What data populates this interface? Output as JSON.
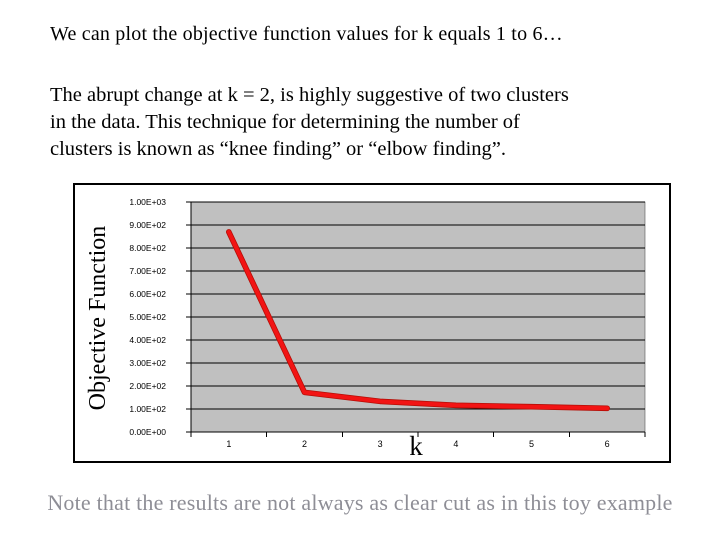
{
  "slide": {
    "title": "We can plot the objective function values for k equals 1 to 6…",
    "body_lines": [
      "The abrupt change at k = 2, is highly suggestive of two clusters",
      "in the data. This technique for determining the number of",
      "clusters is known as “knee finding” or “elbow finding”."
    ],
    "footnote": "Note that the results are not always as clear cut as in this toy example",
    "footnote_color": "#8e8e96"
  },
  "chart_data": {
    "type": "line",
    "x": [
      1,
      2,
      3,
      4,
      5,
      6
    ],
    "values": [
      870,
      172,
      133,
      116,
      110,
      103
    ],
    "xlabel": "k",
    "ylabel": "Objective Function",
    "ylim": [
      0,
      1000
    ],
    "ytick_labels": [
      "1.00E+03",
      "9.00E+02",
      "8.00E+02",
      "7.00E+02",
      "6.00E+02",
      "5.00E+02",
      "4.00E+02",
      "3.00E+02",
      "2.00E+02",
      "1.00E+02",
      "0.00E+00"
    ],
    "xtick_labels": [
      "1",
      "2",
      "3",
      "4",
      "5",
      "6"
    ],
    "grid": true,
    "legend": "none",
    "plot_bg_color": "#c0c0c0",
    "grid_color": "#000000",
    "series_color": "#f21414",
    "series_edge_color": "#b50e06",
    "chart_bg_color": "#ffffff"
  }
}
